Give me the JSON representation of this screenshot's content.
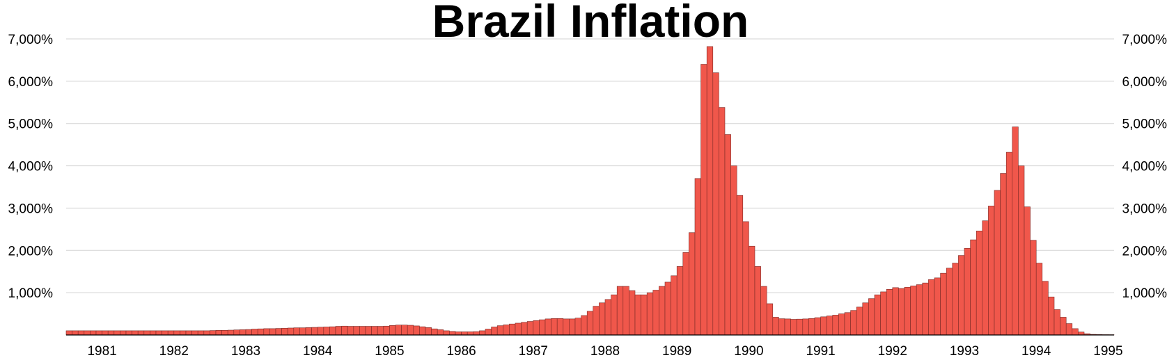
{
  "chart_data": {
    "type": "bar",
    "title": "Brazil Inflation",
    "xlabel": "",
    "ylabel": "",
    "ylim": [
      0,
      7000
    ],
    "y_ticks": [
      {
        "value": 1000,
        "label": "1,000%"
      },
      {
        "value": 2000,
        "label": "2,000%"
      },
      {
        "value": 3000,
        "label": "3,000%"
      },
      {
        "value": 4000,
        "label": "4,000%"
      },
      {
        "value": 5000,
        "label": "5,000%"
      },
      {
        "value": 6000,
        "label": "6,000%"
      },
      {
        "value": 7000,
        "label": "7,000%"
      }
    ],
    "x_ticks": [
      {
        "period": 6,
        "label": "1981"
      },
      {
        "period": 18,
        "label": "1982"
      },
      {
        "period": 30,
        "label": "1983"
      },
      {
        "period": 42,
        "label": "1984"
      },
      {
        "period": 54,
        "label": "1985"
      },
      {
        "period": 66,
        "label": "1986"
      },
      {
        "period": 78,
        "label": "1987"
      },
      {
        "period": 90,
        "label": "1988"
      },
      {
        "period": 102,
        "label": "1989"
      },
      {
        "period": 114,
        "label": "1990"
      },
      {
        "period": 126,
        "label": "1991"
      },
      {
        "period": 138,
        "label": "1992"
      },
      {
        "period": 150,
        "label": "1993"
      },
      {
        "period": 162,
        "label": "1994"
      },
      {
        "period": 174,
        "label": "1995"
      }
    ],
    "grid": true,
    "y_axis_sides": "left-and-right",
    "legend": "none",
    "bar_color": "#f0574b",
    "start_period": "1981",
    "values": [
      100,
      100,
      100,
      100,
      100,
      100,
      100,
      100,
      100,
      100,
      100,
      100,
      100,
      100,
      100,
      100,
      100,
      100,
      100,
      100,
      100,
      100,
      100,
      100,
      105,
      110,
      110,
      115,
      120,
      125,
      130,
      140,
      145,
      150,
      150,
      155,
      160,
      165,
      170,
      170,
      175,
      180,
      185,
      190,
      195,
      205,
      210,
      205,
      205,
      205,
      205,
      205,
      205,
      210,
      225,
      235,
      235,
      230,
      215,
      195,
      175,
      145,
      125,
      100,
      85,
      75,
      75,
      75,
      80,
      100,
      140,
      190,
      220,
      240,
      260,
      280,
      300,
      320,
      340,
      360,
      380,
      390,
      390,
      380,
      380,
      400,
      460,
      560,
      680,
      760,
      840,
      950,
      1150,
      1150,
      1050,
      950,
      950,
      1000,
      1060,
      1150,
      1250,
      1400,
      1620,
      1950,
      2420,
      3700,
      6400,
      6820,
      6200,
      5380,
      4740,
      4000,
      3300,
      2680,
      2100,
      1620,
      1150,
      740,
      420,
      385,
      380,
      370,
      375,
      380,
      390,
      410,
      430,
      450,
      470,
      500,
      530,
      580,
      660,
      760,
      860,
      950,
      1020,
      1080,
      1120,
      1100,
      1130,
      1160,
      1190,
      1230,
      1310,
      1350,
      1460,
      1580,
      1700,
      1880,
      2050,
      2250,
      2460,
      2700,
      3050,
      3420,
      3820,
      4320,
      4920,
      4000,
      3030,
      2240,
      1700,
      1270,
      900,
      600,
      420,
      270,
      150,
      70,
      30,
      15,
      10,
      8,
      7
    ]
  }
}
